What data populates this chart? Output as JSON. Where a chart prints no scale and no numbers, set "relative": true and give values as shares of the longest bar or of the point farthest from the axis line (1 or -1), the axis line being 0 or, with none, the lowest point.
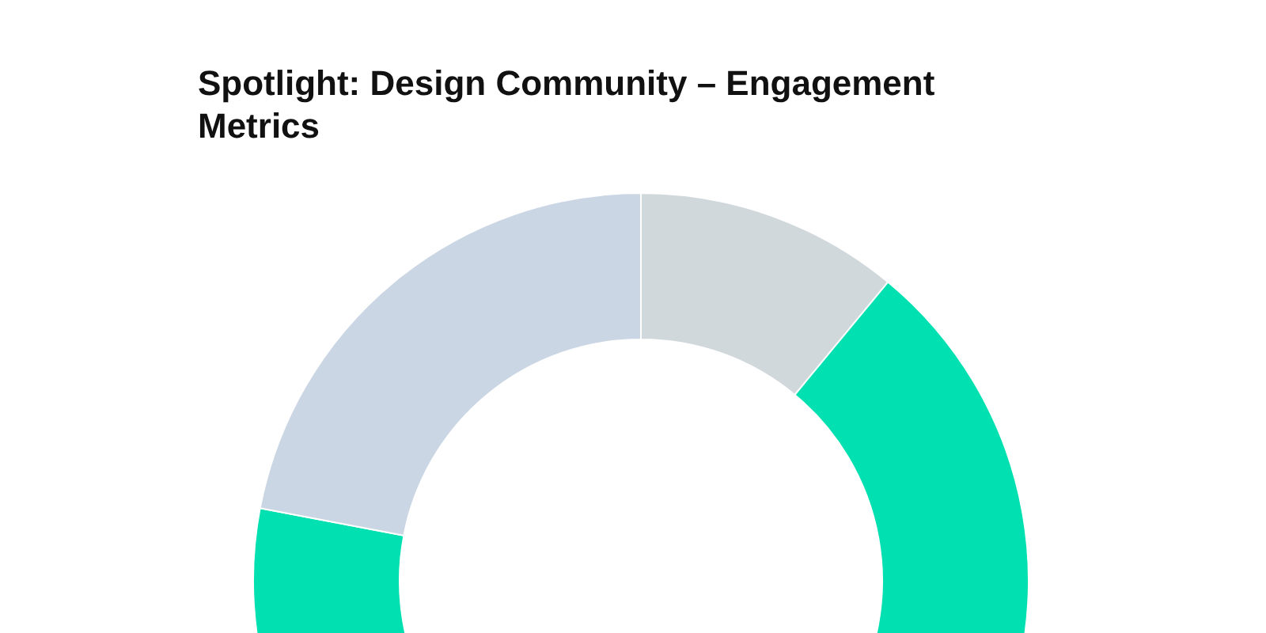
{
  "chart_data": {
    "type": "donut",
    "title": "Spotlight: Design Community – Engagement Metrics",
    "relative": true,
    "categories": [
      null,
      null,
      null
    ],
    "values": [
      11,
      67,
      22
    ],
    "colors": [
      "#d1d8dc",
      "#00e0b0",
      "#cbd6e4"
    ]
  }
}
